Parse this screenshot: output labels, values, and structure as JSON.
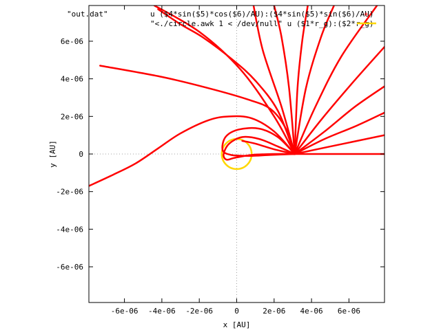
{
  "chart_data": {
    "type": "line",
    "title": "",
    "xlabel": "x [AU]",
    "ylabel": "y [AU]",
    "xlim": [
      -7.9e-06,
      7.9e-06
    ],
    "ylim": [
      -7.9e-06,
      7.9e-06
    ],
    "x_ticks": [
      -6e-06,
      -4e-06,
      -2e-06,
      0,
      2e-06,
      4e-06,
      6e-06
    ],
    "x_tick_labels": [
      "-6e-06",
      "-4e-06",
      "-2e-06",
      "0",
      "2e-06",
      "4e-06",
      "6e-06"
    ],
    "y_ticks": [
      -6e-06,
      -4e-06,
      -2e-06,
      0,
      2e-06,
      4e-06,
      6e-06
    ],
    "y_tick_labels": [
      "-6e-06",
      "-4e-06",
      "-2e-06",
      "0",
      "2e-06",
      "4e-06",
      "6e-06"
    ],
    "zero_axes": "dotted",
    "legend_position": "top-right",
    "legend": [
      {
        "file": "\"out.dat\"",
        "using": "u ($4*sin($5)*cos($6)/AU):($4*sin($5)*sin($6)/AU)",
        "marker": "point",
        "color": "#ff0000"
      },
      {
        "file": "\"<./circle.awk 1 < /dev/null\" u ($1*r_g):($2*r_g)",
        "using": "",
        "marker": "line",
        "color": "#ffd700"
      }
    ],
    "series": [
      {
        "color": "#ff0000",
        "x": [
          3.1e-06,
          4.5e-06,
          6e-06,
          7.9e-06
        ],
        "y": [
          0,
          0,
          0,
          0
        ]
      },
      {
        "color": "#ff0000",
        "x": [
          3.1e-06,
          5e-06,
          7.9e-06
        ],
        "y": [
          0,
          4e-07,
          1e-06
        ]
      },
      {
        "color": "#ff0000",
        "x": [
          3.1e-06,
          4.7e-06,
          6.4e-06,
          7.9e-06
        ],
        "y": [
          0,
          8e-07,
          1.5e-06,
          2.2e-06
        ]
      },
      {
        "color": "#ff0000",
        "x": [
          3.1e-06,
          4.7e-06,
          6.3e-06,
          7.9e-06
        ],
        "y": [
          0,
          1.2e-06,
          2.5e-06,
          3.6e-06
        ]
      },
      {
        "color": "#ff0000",
        "x": [
          3.1e-06,
          4.5e-06,
          6.2e-06,
          7.9e-06
        ],
        "y": [
          0,
          1.8e-06,
          3.8e-06,
          5.7e-06
        ]
      },
      {
        "color": "#ff0000",
        "x": [
          3.1e-06,
          4.2e-06,
          5.6e-06,
          7.5e-06
        ],
        "y": [
          0,
          2.5e-06,
          5.2e-06,
          7.9e-06
        ]
      },
      {
        "color": "#ff0000",
        "x": [
          3.1e-06,
          3.7e-06,
          4.5e-06,
          5.2e-06
        ],
        "y": [
          0,
          3.5e-06,
          6.2e-06,
          7.9e-06
        ]
      },
      {
        "color": "#ff0000",
        "x": [
          3.1e-06,
          3.25e-06,
          3.5e-06,
          3.8e-06
        ],
        "y": [
          0,
          3.5e-06,
          6e-06,
          7.9e-06
        ]
      },
      {
        "color": "#ff0000",
        "x": [
          3.1e-06,
          2.8e-06,
          2.4e-06,
          2e-06
        ],
        "y": [
          0,
          3.5e-06,
          6.2e-06,
          7.9e-06
        ]
      },
      {
        "color": "#ff0000",
        "x": [
          3.1e-06,
          2.4e-06,
          1.4e-06,
          9e-07
        ],
        "y": [
          0,
          2.5e-06,
          5.5e-06,
          7.9e-06
        ]
      },
      {
        "color": "#ff0000",
        "x": [
          3.1e-06,
          2e-06,
          2e-07,
          -2e-06,
          -4.4e-06
        ],
        "y": [
          0,
          2e-06,
          4.5e-06,
          6.5e-06,
          7.9e-06
        ]
      },
      {
        "color": "#ff0000",
        "x": [
          3.1e-06,
          2.2e-06,
          1e-06,
          -2e-07,
          -1.8e-06,
          -3e-06,
          -4.2e-06
        ],
        "y": [
          0,
          2.3e-06,
          3.9e-06,
          5e-06,
          6.2e-06,
          6.9e-06,
          7.7e-06
        ]
      },
      {
        "color": "#ff0000",
        "x": [
          3.1e-06,
          2.6e-06,
          1.8e-06,
          6e-07,
          -1.5e-06,
          -4e-06,
          -7.3e-06
        ],
        "y": [
          0,
          1.4e-06,
          2.4e-06,
          2.9e-06,
          3.5e-06,
          4.1e-06,
          4.7e-06
        ]
      },
      {
        "color": "#ff0000",
        "x": [
          3.1e-06,
          2e-06,
          8e-07,
          -4e-07,
          -1.5e-06,
          -3e-06,
          -4.2e-06,
          -5.4e-06,
          -6.6e-06,
          -7.9e-06
        ],
        "y": [
          0,
          1.2e-06,
          1.9e-06,
          2e-06,
          1.8e-06,
          1.1e-06,
          3e-07,
          -5e-07,
          -1.1e-06,
          -1.7e-06
        ]
      },
      {
        "color": "#ff0000",
        "x": [
          3.1e-06,
          2.2e-06,
          1.2e-06,
          1e-07,
          -6e-07,
          -7.5e-07,
          -3e-07,
          7e-07,
          1.8e-06,
          3.1e-06
        ],
        "y": [
          0,
          9e-07,
          1.35e-06,
          1.3e-06,
          9e-07,
          2e-07,
          -5e-08,
          -1e-07,
          -5e-08,
          0
        ]
      },
      {
        "color": "#ff0000",
        "x": [
          3.1e-06,
          2.2e-06,
          1.2e-06,
          3e-07,
          -4e-07,
          -7e-07,
          -5.5e-07,
          -1e-07,
          8e-07,
          2e-06,
          3.1e-06
        ],
        "y": [
          0,
          4e-07,
          8e-07,
          9e-07,
          5.5e-07,
          0.0,
          -3e-07,
          -2e-07,
          -5e-08,
          0,
          0
        ]
      },
      {
        "color": "#ff0000",
        "x": [
          3.1e-06,
          2e-06,
          1e-06,
          3e-07
        ],
        "y": [
          0,
          2.5e-07,
          5.5e-07,
          7e-07
        ]
      }
    ],
    "circle": {
      "color": "#ffd700",
      "center": [
        0,
        0
      ],
      "radius": 8e-07
    }
  }
}
